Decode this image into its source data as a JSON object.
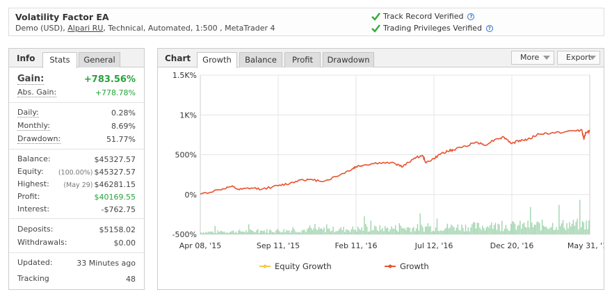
{
  "account": {
    "name": "Volatility Factor EA",
    "type": "Demo (USD),",
    "broker": "Alpari RU",
    "details": ", Technical, Automated, 1:500 , MetaTrader 4",
    "verif1": "Track Record Verified",
    "verif2": "Trading Privileges Verified",
    "help": "?"
  },
  "info": {
    "title": "Info",
    "tabs": [
      "Stats",
      "General"
    ],
    "gain": {
      "label": "Gain:",
      "value": "+783.56%"
    },
    "abs_gain": {
      "label": "Abs. Gain:",
      "value": "+778.78%"
    },
    "daily": {
      "label": "Daily:",
      "value": "0.28%"
    },
    "monthly": {
      "label": "Monthly:",
      "value": "8.69%"
    },
    "drawdown": {
      "label": "Drawdown:",
      "value": "51.77%"
    },
    "balance": {
      "label": "Balance:",
      "value": "$45327.57"
    },
    "equity": {
      "label": "Equity:",
      "note": "(100.00%)",
      "value": "$45327.57"
    },
    "highest": {
      "label": "Highest:",
      "note": "(May 29)",
      "value": "$46281.15"
    },
    "profit": {
      "label": "Profit:",
      "value": "$40169.55"
    },
    "interest": {
      "label": "Interest:",
      "value": "-$762.75"
    },
    "deposits": {
      "label": "Deposits:",
      "value": "$5158.02"
    },
    "withdrawals": {
      "label": "Withdrawals:",
      "value": "$0.00"
    },
    "updated": {
      "label": "Updated:",
      "value": "33 Minutes ago"
    },
    "tracking": {
      "label": "Tracking",
      "value": "48"
    }
  },
  "chart_panel": {
    "title": "Chart",
    "tabs": [
      "Growth",
      "Balance",
      "Profit",
      "Drawdown"
    ],
    "more_label": "More",
    "export_label": "Export"
  },
  "chart_data": {
    "type": "line",
    "y_ticks": [
      "-500%",
      "0%",
      "500%",
      "1K%",
      "1.5K%"
    ],
    "ylim": [
      -500,
      1500
    ],
    "x_ticks": [
      "Apr 08, '15",
      "Sep 11, '15",
      "Feb 11, '16",
      "Jul 12, '16",
      "Dec 20, '16",
      "May 31, '17"
    ],
    "x": [
      0,
      0.05,
      0.08,
      0.1,
      0.13,
      0.16,
      0.2,
      0.23,
      0.26,
      0.29,
      0.32,
      0.36,
      0.39,
      0.4,
      0.42,
      0.46,
      0.5,
      0.52,
      0.55,
      0.57,
      0.58,
      0.6,
      0.62,
      0.64,
      0.65,
      0.68,
      0.71,
      0.73,
      0.76,
      0.78,
      0.8,
      0.82,
      0.84,
      0.87,
      0.9,
      0.94,
      0.96,
      0.98,
      0.985,
      0.99,
      1.0
    ],
    "series": [
      {
        "name": "Equity Growth",
        "color": "#f6c94a",
        "values": [
          5,
          60,
          100,
          60,
          80,
          70,
          110,
          140,
          190,
          180,
          170,
          250,
          320,
          350,
          370,
          400,
          390,
          350,
          460,
          490,
          400,
          450,
          520,
          550,
          560,
          610,
          660,
          620,
          700,
          720,
          640,
          680,
          690,
          760,
          770,
          790,
          800,
          810,
          690,
          780,
          795
        ],
        "visible": false
      },
      {
        "name": "Growth",
        "color": "#e8522e",
        "values": [
          5,
          60,
          100,
          60,
          80,
          70,
          110,
          140,
          190,
          180,
          170,
          250,
          320,
          350,
          370,
          400,
          390,
          350,
          460,
          490,
          400,
          450,
          520,
          550,
          560,
          610,
          660,
          620,
          700,
          720,
          640,
          680,
          690,
          760,
          770,
          790,
          800,
          810,
          690,
          780,
          795
        ]
      }
    ],
    "volume_color": "#9fd4ad",
    "grid": true,
    "legend": "bottom-center"
  }
}
